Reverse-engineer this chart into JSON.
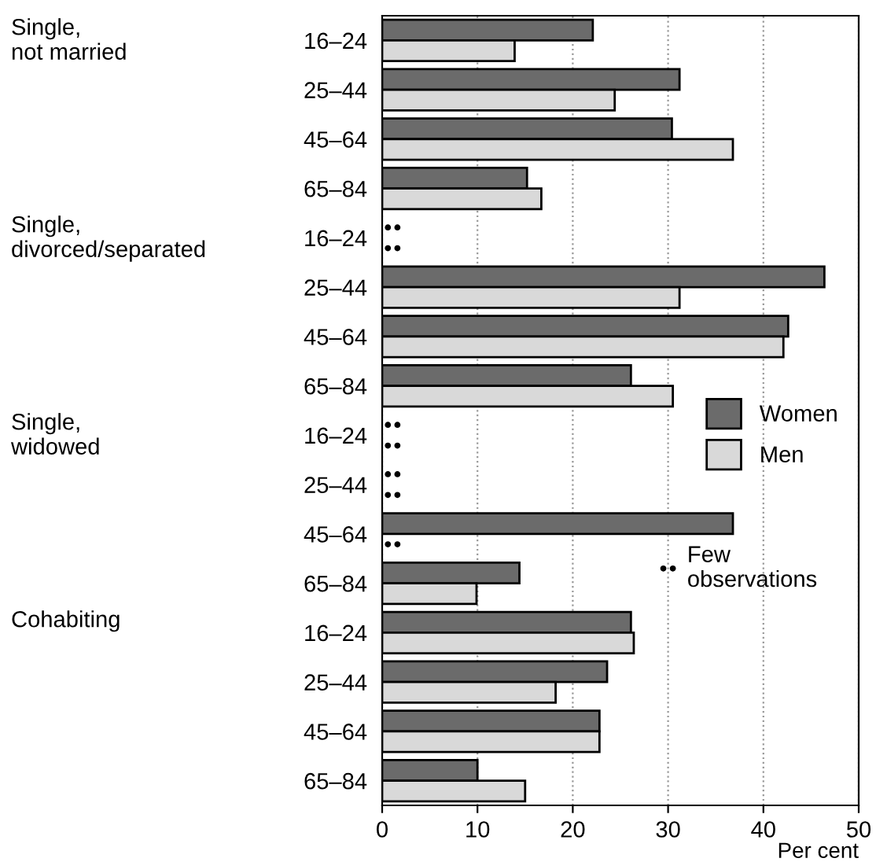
{
  "chart_data": {
    "type": "bar",
    "orientation": "horizontal",
    "xlabel": "Per cent",
    "categories": [
      "16–24",
      "25–44",
      "45–64",
      "65–84",
      "16–24",
      "25–44",
      "45–64",
      "65–84",
      "16–24",
      "25–44",
      "45–64",
      "65–84",
      "16–24",
      "25–44",
      "45–64",
      "65–84"
    ],
    "series": [
      {
        "name": "Women",
        "color": "#6b6b6b",
        "values": [
          22.1,
          31.2,
          30.4,
          15.2,
          null,
          46.4,
          42.6,
          26.1,
          null,
          null,
          36.8,
          14.4,
          26.1,
          23.6,
          22.8,
          10
        ]
      },
      {
        "name": "Men",
        "color": "#d9d9d9",
        "values": [
          13.9,
          24.4,
          36.8,
          16.7,
          null,
          31.2,
          42.1,
          30.5,
          null,
          null,
          null,
          9.9,
          26.4,
          18.2,
          22.8,
          15
        ]
      }
    ],
    "xlim": [
      0,
      50
    ],
    "xticks": [
      0,
      10,
      20,
      30,
      40,
      50
    ],
    "grid": "x",
    "legend": "right",
    "annotations": [
      "Single,\nnot married",
      "Single,\ndivorced/separated",
      "Single,\nwidowed",
      "Cohabiting",
      "Few observations"
    ]
  }
}
